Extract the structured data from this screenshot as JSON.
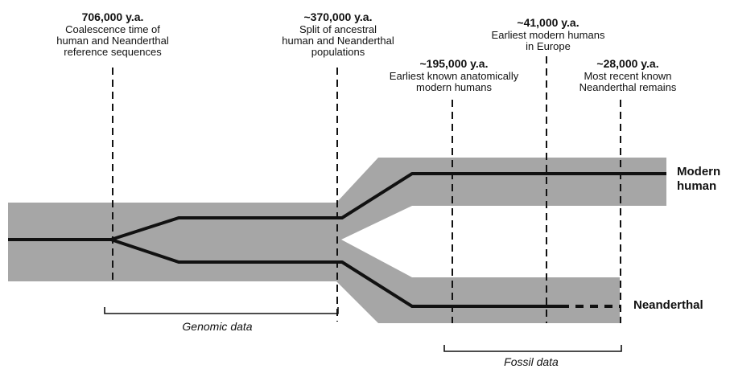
{
  "colors": {
    "band": "#a6a6a6",
    "lineage": "#111111",
    "marker": "#111111",
    "background": "#ffffff"
  },
  "annotations": [
    {
      "date": "706,000 y.a.",
      "desc": "Coalescence time of\nhuman and Neanderthal\nreference sequences"
    },
    {
      "date": "~370,000 y.a.",
      "desc": "Split of ancestral\nhuman and Neanderthal\npopulations"
    },
    {
      "date": "~195,000 y.a.",
      "desc": "Earliest known anatomically\nmodern humans"
    },
    {
      "date": "~41,000 y.a.",
      "desc": "Earliest modern humans\nin Europe"
    },
    {
      "date": "~28,000 y.a.",
      "desc": "Most recent known\nNeanderthal remains"
    }
  ],
  "lineages": {
    "modern": "Modern\nhuman",
    "neanderthal": "Neanderthal"
  },
  "ranges": {
    "genomic": "Genomic data",
    "fossil": "Fossil data"
  }
}
